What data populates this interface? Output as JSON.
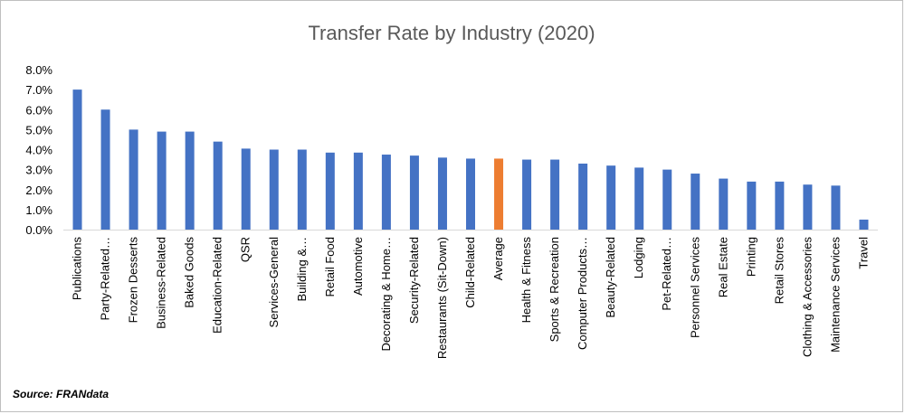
{
  "chart_data": {
    "type": "bar",
    "title": "Transfer Rate by Industry (2020)",
    "xlabel": "",
    "ylabel": "",
    "ylim": [
      0,
      0.08
    ],
    "yticks": [
      {
        "value": 0.0,
        "label": "0.0%"
      },
      {
        "value": 0.01,
        "label": "1.0%"
      },
      {
        "value": 0.02,
        "label": "2.0%"
      },
      {
        "value": 0.03,
        "label": "3.0%"
      },
      {
        "value": 0.04,
        "label": "4.0%"
      },
      {
        "value": 0.05,
        "label": "5.0%"
      },
      {
        "value": 0.06,
        "label": "6.0%"
      },
      {
        "value": 0.07,
        "label": "7.0%"
      },
      {
        "value": 0.08,
        "label": "8.0%"
      }
    ],
    "grid": false,
    "legend": "none",
    "categories": [
      "Publications",
      "Party-Related…",
      "Frozen Desserts",
      "Business-Related",
      "Baked Goods",
      "Education-Related",
      "QSR",
      "Services-General",
      "Building &…",
      "Retail Food",
      "Automotive",
      "Decorating & Home…",
      "Security-Related",
      "Restaurants (Sit-Down)",
      "Child-Related",
      "Average",
      "Health & Fitness",
      "Sports & Recreation",
      "Computer Products…",
      "Beauty-Related",
      "Lodging",
      "Pet-Related…",
      "Personnel Services",
      "Real Estate",
      "Printing",
      "Retail Stores",
      "Clothing & Accessories",
      "Maintenance Services",
      "Travel"
    ],
    "values": [
      0.07,
      0.06,
      0.05,
      0.049,
      0.049,
      0.044,
      0.0405,
      0.04,
      0.04,
      0.0385,
      0.0385,
      0.0375,
      0.037,
      0.036,
      0.0355,
      0.0355,
      0.035,
      0.035,
      0.033,
      0.032,
      0.031,
      0.03,
      0.028,
      0.0255,
      0.024,
      0.024,
      0.0225,
      0.022,
      0.005
    ],
    "bar_color": "#4472C4",
    "highlight": {
      "category": "Average",
      "color": "#ED7D31"
    }
  },
  "source": "Source: FRANdata",
  "colors": {
    "title": "#595959",
    "axis": "#d9d9d9",
    "text": "#000000"
  }
}
